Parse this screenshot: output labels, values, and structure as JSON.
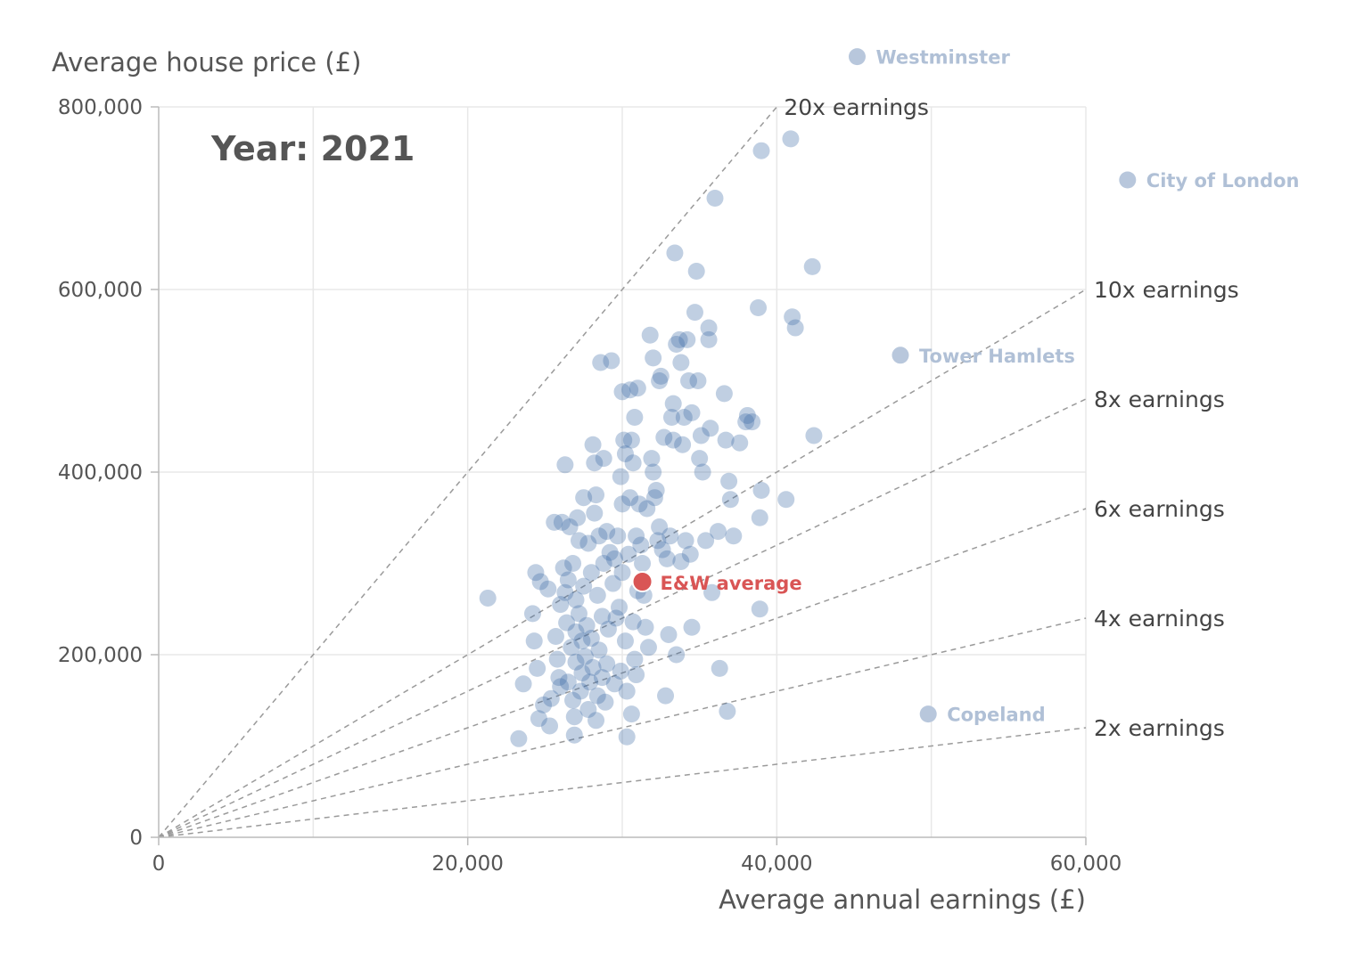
{
  "chart_data": {
    "type": "scatter",
    "title": "Year: 2021",
    "xlabel": "Average annual earnings (£)",
    "ylabel": "Average house price (£)",
    "xlim": [
      0,
      60000
    ],
    "ylim": [
      0,
      800000
    ],
    "x_ticks": [
      {
        "value": 0,
        "label": "0"
      },
      {
        "value": 20000,
        "label": "20,000"
      },
      {
        "value": 40000,
        "label": "40,000"
      },
      {
        "value": 60000,
        "label": "60,000"
      }
    ],
    "y_ticks": [
      {
        "value": 0,
        "label": "0"
      },
      {
        "value": 200000,
        "label": "200,000"
      },
      {
        "value": 400000,
        "label": "400,000"
      },
      {
        "value": 600000,
        "label": "600,000"
      },
      {
        "value": 800000,
        "label": "800,000"
      }
    ],
    "x_gridlines": [
      10000,
      20000,
      30000,
      40000,
      50000,
      60000
    ],
    "y_gridlines": [
      200000,
      400000,
      600000,
      800000
    ],
    "ratio_lines": [
      {
        "multiple": 20,
        "label": "20x earnings"
      },
      {
        "multiple": 10,
        "label": "10x earnings"
      },
      {
        "multiple": 8,
        "label": "8x earnings"
      },
      {
        "multiple": 6,
        "label": "6x earnings"
      },
      {
        "multiple": 4,
        "label": "4x earnings"
      },
      {
        "multiple": 2,
        "label": "2x earnings"
      }
    ],
    "colors": {
      "point": "#3b6ba5",
      "highlight": "#d95555",
      "outlier": "#b8c7dc",
      "outlier_label": "#b0c0d6"
    },
    "highlight": {
      "name": "E&W average",
      "x": 31300,
      "y": 280000
    },
    "labeled_outliers": [
      {
        "name": "Westminster",
        "x": 45200,
        "y": 855000
      },
      {
        "name": "City of London",
        "x": 62700,
        "y": 720000
      },
      {
        "name": "Tower Hamlets",
        "x": 48000,
        "y": 528000
      },
      {
        "name": "Copeland",
        "x": 49800,
        "y": 135000
      }
    ],
    "points": [
      [
        21300,
        262000
      ],
      [
        23300,
        108000
      ],
      [
        23600,
        168000
      ],
      [
        24200,
        245000
      ],
      [
        24300,
        215000
      ],
      [
        24400,
        290000
      ],
      [
        24500,
        185000
      ],
      [
        24600,
        130000
      ],
      [
        24700,
        280000
      ],
      [
        24900,
        145000
      ],
      [
        25200,
        272000
      ],
      [
        25300,
        122000
      ],
      [
        25400,
        152000
      ],
      [
        25600,
        345000
      ],
      [
        25700,
        220000
      ],
      [
        25800,
        195000
      ],
      [
        25900,
        175000
      ],
      [
        26000,
        165000
      ],
      [
        26000,
        255000
      ],
      [
        26100,
        345000
      ],
      [
        26200,
        295000
      ],
      [
        26300,
        408000
      ],
      [
        26300,
        268000
      ],
      [
        26400,
        235000
      ],
      [
        26500,
        282000
      ],
      [
        26500,
        170000
      ],
      [
        26600,
        340000
      ],
      [
        26700,
        208000
      ],
      [
        26800,
        300000
      ],
      [
        26800,
        150000
      ],
      [
        26900,
        112000
      ],
      [
        26900,
        132000
      ],
      [
        27000,
        225000
      ],
      [
        27000,
        192000
      ],
      [
        27000,
        260000
      ],
      [
        27100,
        350000
      ],
      [
        27200,
        325000
      ],
      [
        27200,
        245000
      ],
      [
        27300,
        160000
      ],
      [
        27400,
        215000
      ],
      [
        27400,
        180000
      ],
      [
        27500,
        372000
      ],
      [
        27500,
        275000
      ],
      [
        27600,
        198000
      ],
      [
        27700,
        232000
      ],
      [
        27800,
        140000
      ],
      [
        27800,
        322000
      ],
      [
        27900,
        170000
      ],
      [
        28000,
        290000
      ],
      [
        28000,
        218000
      ],
      [
        28100,
        430000
      ],
      [
        28100,
        186000
      ],
      [
        28200,
        410000
      ],
      [
        28200,
        355000
      ],
      [
        28300,
        375000
      ],
      [
        28300,
        128000
      ],
      [
        28400,
        265000
      ],
      [
        28400,
        155000
      ],
      [
        28500,
        330000
      ],
      [
        28500,
        205000
      ],
      [
        28600,
        520000
      ],
      [
        28700,
        242000
      ],
      [
        28700,
        175000
      ],
      [
        28800,
        415000
      ],
      [
        28800,
        300000
      ],
      [
        28900,
        148000
      ],
      [
        29000,
        190000
      ],
      [
        29000,
        335000
      ],
      [
        29100,
        228000
      ],
      [
        29200,
        312000
      ],
      [
        29300,
        522000
      ],
      [
        29400,
        278000
      ],
      [
        29500,
        168000
      ],
      [
        29500,
        305000
      ],
      [
        29600,
        240000
      ],
      [
        29700,
        330000
      ],
      [
        29800,
        252000
      ],
      [
        29900,
        395000
      ],
      [
        29900,
        182000
      ],
      [
        30000,
        488000
      ],
      [
        30000,
        365000
      ],
      [
        30000,
        290000
      ],
      [
        30100,
        435000
      ],
      [
        30200,
        420000
      ],
      [
        30200,
        215000
      ],
      [
        30300,
        110000
      ],
      [
        30300,
        160000
      ],
      [
        30400,
        310000
      ],
      [
        30500,
        490000
      ],
      [
        30500,
        372000
      ],
      [
        30600,
        135000
      ],
      [
        30600,
        435000
      ],
      [
        30700,
        410000
      ],
      [
        30700,
        236000
      ],
      [
        30800,
        460000
      ],
      [
        30800,
        195000
      ],
      [
        30900,
        330000
      ],
      [
        30900,
        178000
      ],
      [
        31000,
        492000
      ],
      [
        31000,
        270000
      ],
      [
        31100,
        365000
      ],
      [
        31200,
        320000
      ],
      [
        31300,
        300000
      ],
      [
        31400,
        265000
      ],
      [
        31500,
        230000
      ],
      [
        31600,
        360000
      ],
      [
        31700,
        208000
      ],
      [
        31800,
        550000
      ],
      [
        31900,
        415000
      ],
      [
        32000,
        400000
      ],
      [
        32000,
        525000
      ],
      [
        32100,
        372000
      ],
      [
        32200,
        380000
      ],
      [
        32300,
        325000
      ],
      [
        32400,
        500000
      ],
      [
        32400,
        340000
      ],
      [
        32500,
        505000
      ],
      [
        32600,
        315000
      ],
      [
        32700,
        438000
      ],
      [
        32800,
        155000
      ],
      [
        32900,
        305000
      ],
      [
        33000,
        222000
      ],
      [
        33100,
        330000
      ],
      [
        33200,
        460000
      ],
      [
        33300,
        435000
      ],
      [
        33300,
        475000
      ],
      [
        33400,
        640000
      ],
      [
        33500,
        540000
      ],
      [
        33500,
        200000
      ],
      [
        33700,
        545000
      ],
      [
        33800,
        520000
      ],
      [
        33800,
        302000
      ],
      [
        33900,
        430000
      ],
      [
        34000,
        460000
      ],
      [
        34100,
        325000
      ],
      [
        34200,
        545000
      ],
      [
        34300,
        500000
      ],
      [
        34400,
        310000
      ],
      [
        34500,
        465000
      ],
      [
        34500,
        230000
      ],
      [
        34700,
        575000
      ],
      [
        34800,
        620000
      ],
      [
        34900,
        500000
      ],
      [
        35000,
        415000
      ],
      [
        35100,
        440000
      ],
      [
        35200,
        400000
      ],
      [
        35400,
        325000
      ],
      [
        35600,
        558000
      ],
      [
        35600,
        545000
      ],
      [
        35700,
        448000
      ],
      [
        35800,
        268000
      ],
      [
        36000,
        700000
      ],
      [
        36200,
        335000
      ],
      [
        36300,
        185000
      ],
      [
        36600,
        486000
      ],
      [
        36700,
        435000
      ],
      [
        36800,
        138000
      ],
      [
        36900,
        390000
      ],
      [
        37000,
        370000
      ],
      [
        37200,
        330000
      ],
      [
        37600,
        432000
      ],
      [
        38000,
        455000
      ],
      [
        38100,
        462000
      ],
      [
        38400,
        455000
      ],
      [
        38800,
        580000
      ],
      [
        38900,
        250000
      ],
      [
        38900,
        350000
      ],
      [
        39000,
        752000
      ],
      [
        39000,
        380000
      ],
      [
        40600,
        370000
      ],
      [
        40900,
        765000
      ],
      [
        41000,
        570000
      ],
      [
        41200,
        558000
      ],
      [
        42300,
        625000
      ],
      [
        42400,
        440000
      ]
    ]
  }
}
